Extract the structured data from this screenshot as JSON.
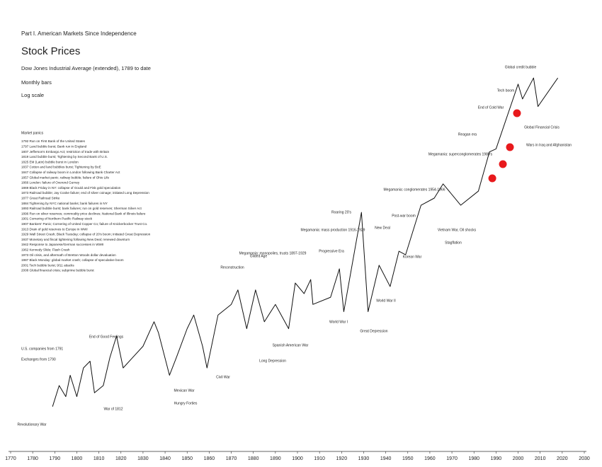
{
  "chart_data": {
    "type": "line",
    "part": "Part I. American Markets Since Independence",
    "title": "Stock Prices",
    "subtitle": "Dow Jones Industrial Average (extended), 1789 to date",
    "notes": [
      "Monthly bars",
      "Log scale"
    ],
    "log_scale": true,
    "color": "#111111",
    "x": [
      1789,
      1792,
      1795,
      1797,
      1800,
      1803,
      1806,
      1808,
      1812,
      1815,
      1818,
      1821,
      1825,
      1830,
      1835,
      1837,
      1842,
      1845,
      1850,
      1853,
      1857,
      1859,
      1864,
      1870,
      1873,
      1877,
      1881,
      1885,
      1890,
      1896,
      1899,
      1903,
      1906,
      1907,
      1915,
      1919,
      1921,
      1929,
      1932,
      1937,
      1942,
      1946,
      1949,
      1956,
      1962,
      1966,
      1974,
      1982,
      1987,
      1990,
      2000,
      2002,
      2007,
      2009,
      2018
    ],
    "values": [
      3.5,
      6.2,
      4.6,
      8.2,
      4.6,
      10,
      12,
      5.1,
      6.2,
      13.3,
      23.7,
      10,
      13,
      18,
      35,
      26,
      8.2,
      13,
      29,
      42,
      18,
      10,
      42,
      56,
      83,
      29,
      83,
      35,
      56,
      29,
      100,
      75,
      110,
      56,
      68,
      147,
      46,
      680,
      46,
      162,
      91,
      237,
      215,
      825,
      1000,
      1470,
      825,
      1210,
      3500,
      3800,
      22000,
      14700,
      26000,
      12000,
      26000
    ],
    "xlim": [
      1770,
      2030
    ],
    "ylim": [
      1,
      100000
    ],
    "xticks": [
      1770,
      1780,
      1790,
      1800,
      1810,
      1820,
      1830,
      1840,
      1850,
      1860,
      1870,
      1880,
      1890,
      1900,
      1910,
      1920,
      1930,
      1940,
      1950,
      1960,
      1970,
      1980,
      1990,
      2000,
      2010,
      2020,
      2030
    ],
    "markers": {
      "color": "#e8191c",
      "x": [
        1988.3,
        1993.1,
        1996.3,
        1999.5
      ],
      "values": [
        1710,
        2510,
        3980,
        10000
      ]
    },
    "annotations": [
      "Revolutionary War",
      "War of 1812",
      "End of Good Feelings",
      "Mexican War",
      "Hungry Forties",
      "Civil War",
      "Reconstruction",
      "Gilded Age",
      "Long Depression",
      "Spanish American War",
      "Megamania: monopolies, trusts 1897-1929",
      "Progressive Era",
      "Megamania: mass production 1916-1929",
      "Roaring 20's",
      "World War I",
      "Great Depression",
      "New Deal",
      "World War II",
      "Post-war boom",
      "Korean War",
      "Megamania: conglomerates 1954-1966",
      "Vietnam War, Oil shocks",
      "Stagflation",
      "Megamania: superconglomerates 1980's",
      "Reagan era",
      "End of Cold War",
      "Tech boom",
      "Global credit bubble",
      "Global Financial Crisis",
      "Wars in Iraq and Afghanistan"
    ],
    "panics": {
      "title": "Market panics",
      "items": [
        "1792 Run on First Bank of the United States",
        "1797 Land bubble burst; Bank run in England",
        "1807 Jefferson's Embargo Act; restriction of trade with Britain",
        "1819 Land bubble burst; Tightening by Second Bank of U.S.",
        "1825 EM (Latin) bubble burst in London",
        "1837 Cotton and land bubbles burst; Tightening by BoE",
        "1847 Collapse of railway boom in London following Bank Charter Act",
        "1857 Global market panic; railway bubble; failure of Ohio Life",
        "1866 London: failure of Overend Gurney",
        "1869 Black Friday in NY: collapse of Gould and Fisk gold speculation",
        "1873 Railroad bubble; Jay Cooke failure; end of silver coinage; initiated Long Depression",
        "1877 Great Railroad Strike",
        "1884 Tightening by NYC national banks; bank failures in NY",
        "1893 Railroad bubble burst; bank failures; run on gold reserves; Sherman Silver Act",
        "1896 Run on silver reserves; commodity price declines; National Bank of Illinois failure",
        "1901 Cornering of Northern Pacific Railway stock",
        "1907 Bankers' Panic; Cornering of United Copper Co; failure of Knickerbocker Trust Co.",
        "1913 Drain of gold reserves to Europe in WWI",
        "1929 Wall Street Crash; Black Tuesday; collapse of 20's boom; initiated Great Depression",
        "1937 Monetary and fiscal tightening following New Deal; renewed downturn",
        "1942 Response to Japanese/German successes in WWII",
        "1962 Kennedy Slide; Flash Crash",
        "1973 Oil crisis, and aftermath of Bretton Woods dollar devaluation",
        "1987 Black Monday: global market crash; collapse of speculative boom",
        "2001 Tech bubble burst; 9/11 attacks",
        "2008 Global financial crisis; subprime bubble burst"
      ]
    },
    "side_notes": [
      "U.S. companies from 1791",
      "Exchanges from 1790"
    ]
  }
}
